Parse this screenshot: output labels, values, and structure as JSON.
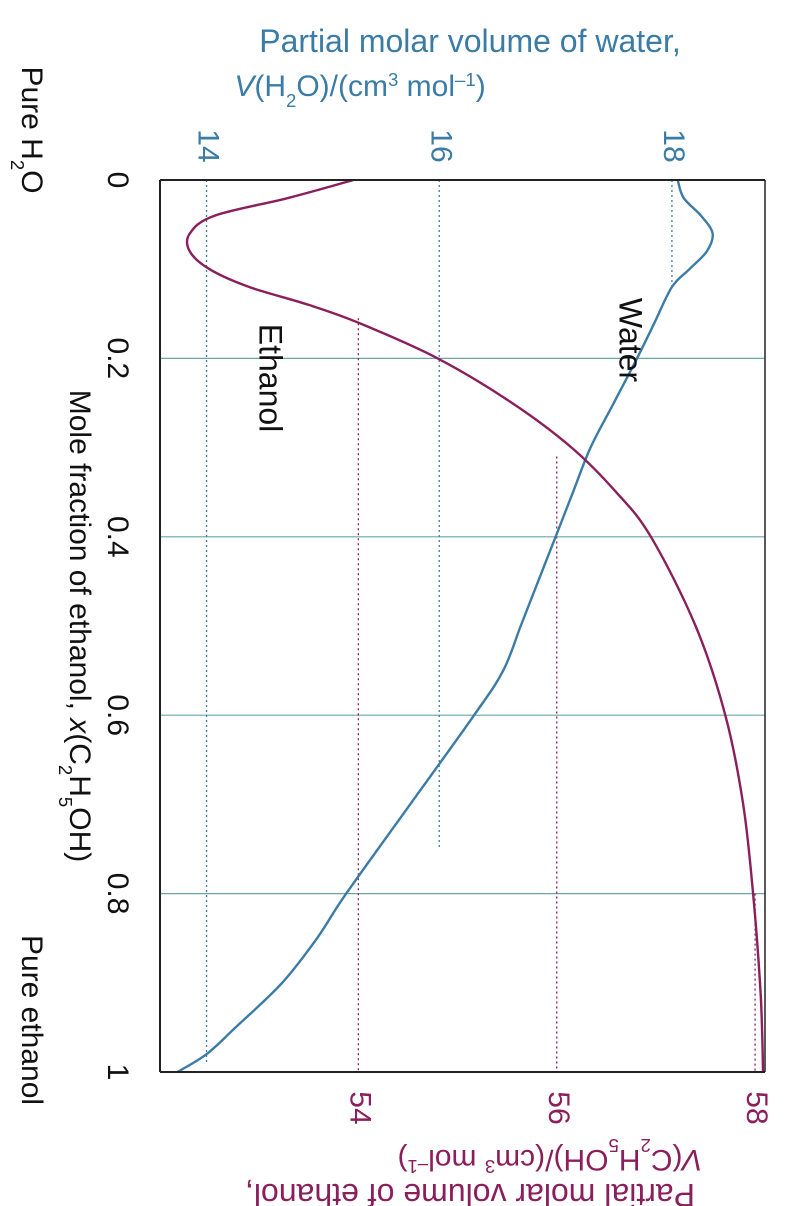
{
  "chart_data": {
    "type": "line",
    "colors": {
      "water": "#3a7ca5",
      "ethanol": "#8a1f5c",
      "grid": "#6aa6a6",
      "axis": "#222222"
    },
    "x_axis": {
      "label_main": "Mole fraction of ethanol, ",
      "label_italic": "x",
      "label_tail": "(C",
      "label_sub1": "2",
      "label_mid": "H",
      "label_sub2": "5",
      "label_end": "OH)",
      "range": [
        0,
        1
      ],
      "ticks": [
        "0",
        "0.2",
        "0.4",
        "0.6",
        "0.8",
        "1"
      ],
      "tick_values": [
        0,
        0.2,
        0.4,
        0.6,
        0.8,
        1.0
      ],
      "end_left": "Pure H",
      "end_left_sub": "2",
      "end_left_tail": "O",
      "end_right": "Pure ethanol"
    },
    "water_axis": {
      "title_line1": "Partial molar volume of water,",
      "title_v": "V",
      "title_paren": "(H",
      "title_sub": "2",
      "title_rest": "O)/(cm",
      "title_sup": "3",
      "title_unit": " mol",
      "title_exp": "–1",
      "title_close": ")",
      "range": [
        13.6,
        18.8
      ],
      "ticks": [
        "14",
        "16",
        "18"
      ],
      "tick_values": [
        14,
        16,
        18
      ]
    },
    "ethanol_axis": {
      "title_v": "V",
      "title_paren": "(C",
      "title_sub1": "2",
      "title_h": "H",
      "title_sub2": "5",
      "title_rest": "OH)/(cm",
      "title_sup": "3",
      "title_unit": " mol",
      "title_exp": "–1",
      "title_close": ")",
      "title_line2": "Partial molar volume of ethanol,",
      "range": [
        52.0,
        58.1
      ],
      "ticks": [
        "54",
        "56",
        "58"
      ],
      "tick_values": [
        54,
        56,
        58
      ]
    },
    "series": [
      {
        "name": "Water",
        "x": [
          0.0,
          0.02,
          0.04,
          0.06,
          0.08,
          0.1,
          0.12,
          0.16,
          0.2,
          0.25,
          0.3,
          0.35,
          0.4,
          0.45,
          0.5,
          0.55,
          0.6,
          0.7,
          0.8,
          0.85,
          0.9,
          0.95,
          0.98,
          1.0
        ],
        "values": [
          18.05,
          18.1,
          18.25,
          18.35,
          18.3,
          18.15,
          18.0,
          17.85,
          17.7,
          17.5,
          17.3,
          17.15,
          17.0,
          16.85,
          16.7,
          16.55,
          16.3,
          15.75,
          15.2,
          14.95,
          14.65,
          14.25,
          14.0,
          13.75
        ]
      },
      {
        "name": "Ethanol",
        "x": [
          0.0,
          0.02,
          0.04,
          0.06,
          0.08,
          0.1,
          0.12,
          0.14,
          0.16,
          0.2,
          0.25,
          0.3,
          0.35,
          0.4,
          0.5,
          0.6,
          0.7,
          0.8,
          0.9,
          0.95,
          1.0
        ],
        "values": [
          53.95,
          53.3,
          52.55,
          52.3,
          52.3,
          52.5,
          52.9,
          53.5,
          54.0,
          54.8,
          55.55,
          56.15,
          56.6,
          56.95,
          57.4,
          57.7,
          57.88,
          57.98,
          58.05,
          58.07,
          58.08
        ]
      }
    ],
    "series_labels": {
      "water": "Water",
      "ethanol": "Ethanol"
    },
    "grid": true,
    "legend": "none"
  }
}
